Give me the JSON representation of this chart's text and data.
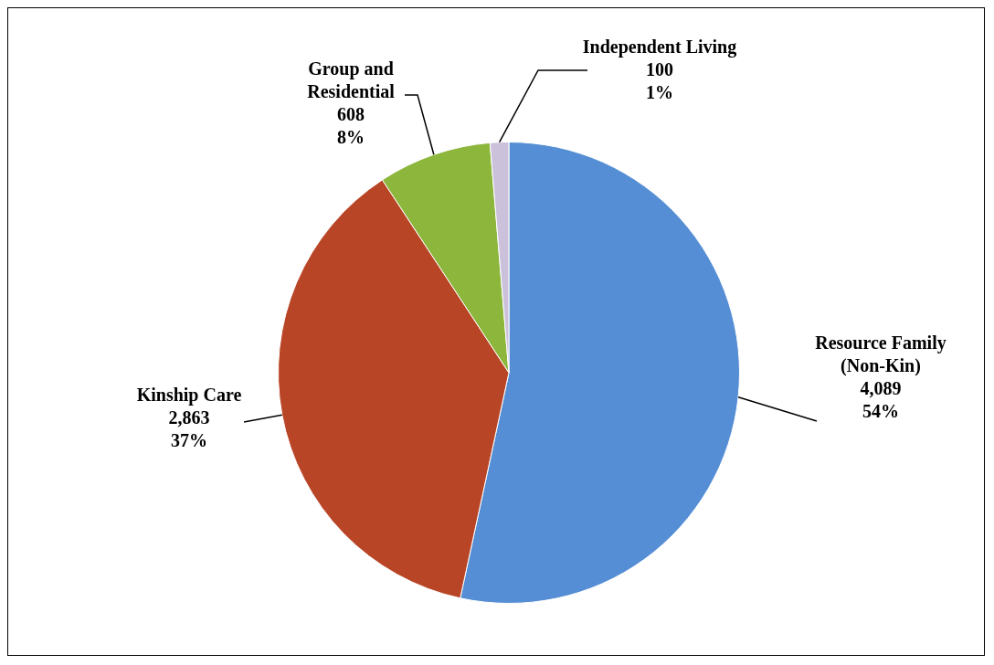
{
  "chart_data": {
    "type": "pie",
    "categories": [
      "Resource Family\n(Non-Kin)",
      "Kinship Care",
      "Group and\nResidential",
      "Independent Living"
    ],
    "values": [
      4089,
      2863,
      608,
      100
    ],
    "colors": [
      "#558ed5",
      "#b94527",
      "#8db63c",
      "#ccc1da"
    ],
    "value_labels": [
      "4,089\n54%",
      "2,863\n37%",
      "608\n8%",
      "100\n1%"
    ],
    "legend": false
  }
}
